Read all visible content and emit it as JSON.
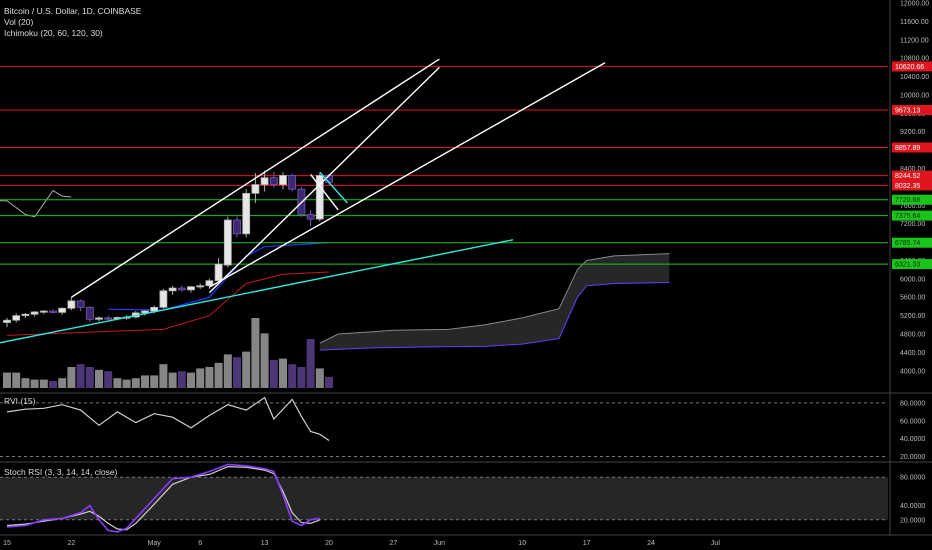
{
  "header": {
    "title": "Bitcoin / U.S. Dollar, 1D, COINBASE",
    "vol_label": "Vol (20)",
    "ichimoku_label": "Ichimoku (20, 60, 120, 30)",
    "rvi_label": "RVI (15)",
    "stoch_label": "Stoch RSI (3, 3, 14, 14, close)"
  },
  "colors": {
    "background": "#000000",
    "bull_candle": "#9e9e9e",
    "bear_candle": "#5a3f8a",
    "resistance_line": "#e0161e",
    "support_line": "#1bc41b",
    "trend_white": "#ffffff",
    "trend_cyan": "#2ee8e0",
    "kijun": "#1a3cff",
    "tenkan": "#c21a1a",
    "cloud_fill": "#2b2b2b",
    "stoch_k": "#8a3cff",
    "stoch_d": "#cfcfcf"
  },
  "chart_data": {
    "type": "candlestick",
    "price_axis": {
      "ylim": [
        3800,
        12000
      ],
      "ticks": [
        4000,
        4400,
        4800,
        5200,
        5600,
        6000,
        6400,
        6800,
        7200,
        7600,
        8000,
        8400,
        8800,
        9200,
        9600,
        10000,
        10400,
        10800,
        11200,
        11600,
        12000
      ],
      "tick_labels": [
        "4000.00",
        "4400.00",
        "4800.00",
        "5200.00",
        "5600.00",
        "6000.00",
        "6400.00",
        "6800.00",
        "7200.00",
        "7600.00",
        "8000.00",
        "8400.00",
        "8800.00",
        "9200.00",
        "9600.00",
        "10000.00",
        "10400.00",
        "10800.00",
        "11200.00",
        "11600.00",
        "12000.00"
      ]
    },
    "x_axis": {
      "labels": [
        "15",
        "22",
        "May",
        "6",
        "13",
        "20",
        "27",
        "Jun",
        "10",
        "17",
        "24",
        "Jul"
      ],
      "label_days": [
        0,
        7,
        16,
        21,
        28,
        35,
        42,
        47,
        56,
        63,
        70,
        77
      ]
    },
    "price_levels": [
      {
        "value": 10620.66,
        "label": "10620.66",
        "type": "resistance"
      },
      {
        "value": 9673.13,
        "label": "9673.13",
        "type": "resistance"
      },
      {
        "value": 8857.89,
        "label": "8857.89",
        "type": "resistance"
      },
      {
        "value": 8244.52,
        "label": "8244.52",
        "type": "resistance"
      },
      {
        "value": 8032.35,
        "label": "8032.35",
        "type": "resistance"
      },
      {
        "value": 7720.68,
        "label": "7720.68",
        "type": "support"
      },
      {
        "value": 7375.64,
        "label": "7375.64",
        "type": "support"
      },
      {
        "value": 6785.74,
        "label": "6785.74",
        "type": "support"
      },
      {
        "value": 6321.33,
        "label": "6321.33",
        "type": "support"
      }
    ],
    "candles": [
      {
        "d": 0,
        "o": 5050,
        "h": 5150,
        "l": 4950,
        "c": 5100
      },
      {
        "d": 1,
        "o": 5100,
        "h": 5250,
        "l": 5050,
        "c": 5200
      },
      {
        "d": 2,
        "o": 5200,
        "h": 5260,
        "l": 5150,
        "c": 5230
      },
      {
        "d": 3,
        "o": 5230,
        "h": 5300,
        "l": 5180,
        "c": 5280
      },
      {
        "d": 4,
        "o": 5280,
        "h": 5320,
        "l": 5230,
        "c": 5300
      },
      {
        "d": 5,
        "o": 5300,
        "h": 5330,
        "l": 5250,
        "c": 5270
      },
      {
        "d": 6,
        "o": 5270,
        "h": 5380,
        "l": 5220,
        "c": 5360
      },
      {
        "d": 7,
        "o": 5360,
        "h": 5600,
        "l": 5320,
        "c": 5520
      },
      {
        "d": 8,
        "o": 5520,
        "h": 5550,
        "l": 5300,
        "c": 5380
      },
      {
        "d": 9,
        "o": 5380,
        "h": 5400,
        "l": 5060,
        "c": 5120
      },
      {
        "d": 10,
        "o": 5120,
        "h": 5180,
        "l": 5070,
        "c": 5150
      },
      {
        "d": 11,
        "o": 5150,
        "h": 5200,
        "l": 5100,
        "c": 5140
      },
      {
        "d": 12,
        "o": 5140,
        "h": 5180,
        "l": 5100,
        "c": 5160
      },
      {
        "d": 13,
        "o": 5160,
        "h": 5210,
        "l": 5110,
        "c": 5170
      },
      {
        "d": 14,
        "o": 5170,
        "h": 5300,
        "l": 5140,
        "c": 5260
      },
      {
        "d": 15,
        "o": 5260,
        "h": 5320,
        "l": 5200,
        "c": 5300
      },
      {
        "d": 16,
        "o": 5300,
        "h": 5420,
        "l": 5250,
        "c": 5380
      },
      {
        "d": 17,
        "o": 5380,
        "h": 5780,
        "l": 5350,
        "c": 5740
      },
      {
        "d": 18,
        "o": 5740,
        "h": 5850,
        "l": 5650,
        "c": 5800
      },
      {
        "d": 19,
        "o": 5800,
        "h": 5860,
        "l": 5720,
        "c": 5760
      },
      {
        "d": 20,
        "o": 5760,
        "h": 5840,
        "l": 5700,
        "c": 5830
      },
      {
        "d": 21,
        "o": 5830,
        "h": 5900,
        "l": 5780,
        "c": 5850
      },
      {
        "d": 22,
        "o": 5850,
        "h": 6000,
        "l": 5780,
        "c": 5960
      },
      {
        "d": 23,
        "o": 5960,
        "h": 6450,
        "l": 5900,
        "c": 6320
      },
      {
        "d": 24,
        "o": 6300,
        "h": 7350,
        "l": 6250,
        "c": 7280
      },
      {
        "d": 25,
        "o": 7280,
        "h": 7350,
        "l": 6900,
        "c": 6980
      },
      {
        "d": 26,
        "o": 6980,
        "h": 7950,
        "l": 6900,
        "c": 7860
      },
      {
        "d": 27,
        "o": 7860,
        "h": 8300,
        "l": 7650,
        "c": 8050
      },
      {
        "d": 28,
        "o": 8050,
        "h": 8350,
        "l": 7900,
        "c": 8200
      },
      {
        "d": 29,
        "o": 8200,
        "h": 8330,
        "l": 7980,
        "c": 8050
      },
      {
        "d": 30,
        "o": 8050,
        "h": 8320,
        "l": 7950,
        "c": 8250
      },
      {
        "d": 31,
        "o": 8250,
        "h": 8290,
        "l": 7900,
        "c": 7950
      },
      {
        "d": 32,
        "o": 7950,
        "h": 8000,
        "l": 7350,
        "c": 7400
      },
      {
        "d": 33,
        "o": 7400,
        "h": 7500,
        "l": 7150,
        "c": 7300
      },
      {
        "d": 34,
        "o": 7300,
        "h": 8300,
        "l": 7250,
        "c": 8250
      },
      {
        "d": 35,
        "o": 8250,
        "h": 8280,
        "l": 8050,
        "c": 8100
      }
    ],
    "volume": {
      "values": [
        22,
        22,
        14,
        12,
        12,
        10,
        14,
        30,
        34,
        30,
        26,
        24,
        14,
        12,
        14,
        18,
        18,
        34,
        22,
        24,
        22,
        28,
        30,
        36,
        48,
        44,
        52,
        100,
        78,
        40,
        42,
        34,
        30,
        70,
        28,
        16
      ],
      "ylim": [
        0,
        140
      ]
    },
    "ichimoku": {
      "kijun": [
        [
          11,
          5340
        ],
        [
          17,
          5320
        ],
        [
          22,
          5600
        ],
        [
          26,
          6500
        ],
        [
          28,
          6700
        ],
        [
          33,
          6760
        ],
        [
          35,
          6790
        ]
      ],
      "tenkan": [
        [
          0,
          4770
        ],
        [
          10,
          4850
        ],
        [
          17,
          4900
        ],
        [
          22,
          5200
        ],
        [
          26,
          5900
        ],
        [
          30,
          6100
        ],
        [
          35,
          6150
        ]
      ],
      "cloud_span_a": [
        [
          34,
          4600
        ],
        [
          36,
          4800
        ],
        [
          42,
          4880
        ],
        [
          48,
          4900
        ],
        [
          52,
          5000
        ],
        [
          56,
          5150
        ],
        [
          60,
          5350
        ],
        [
          62,
          6200
        ],
        [
          63,
          6400
        ],
        [
          66,
          6500
        ],
        [
          72,
          6550
        ]
      ],
      "cloud_span_b": [
        [
          34,
          4450
        ],
        [
          40,
          4500
        ],
        [
          46,
          4520
        ],
        [
          52,
          4530
        ],
        [
          56,
          4580
        ],
        [
          60,
          4700
        ],
        [
          62,
          5600
        ],
        [
          63,
          5850
        ],
        [
          66,
          5900
        ],
        [
          72,
          5920
        ]
      ],
      "lagging": [
        [
          -1,
          7700
        ],
        [
          0,
          7700
        ],
        [
          2,
          7400
        ],
        [
          3,
          7350
        ],
        [
          5,
          7920
        ],
        [
          6,
          7800
        ],
        [
          7,
          7780
        ]
      ]
    },
    "trendlines": [
      {
        "from": [
          7,
          5600
        ],
        "to": [
          47,
          10780
        ],
        "color": "white"
      },
      {
        "from": [
          22,
          5700
        ],
        "to": [
          47,
          10600
        ],
        "color": "white"
      },
      {
        "from": [
          22,
          5820
        ],
        "to": [
          65,
          10700
        ],
        "color": "white"
      },
      {
        "from": [
          -2,
          4560
        ],
        "to": [
          55,
          6850
        ],
        "color": "cyan"
      },
      {
        "from": [
          33,
          8270
        ],
        "to": [
          36,
          7500
        ],
        "color": "white"
      },
      {
        "from": [
          34,
          8320
        ],
        "to": [
          37,
          7650
        ],
        "color": "cyan"
      }
    ],
    "rvi": {
      "label": "RVI (15)",
      "ylim": [
        15,
        90
      ],
      "ticks": [
        20,
        40,
        60,
        80
      ],
      "tick_labels": [
        "20.0000",
        "40.0000",
        "60.0000",
        "80.0000"
      ],
      "bands": [
        80,
        20
      ],
      "values": [
        [
          0,
          70
        ],
        [
          2,
          73
        ],
        [
          4,
          74
        ],
        [
          6,
          78
        ],
        [
          8,
          72
        ],
        [
          10,
          55
        ],
        [
          12,
          70
        ],
        [
          14,
          58
        ],
        [
          16,
          68
        ],
        [
          18,
          64
        ],
        [
          20,
          52
        ],
        [
          22,
          66
        ],
        [
          24,
          78
        ],
        [
          26,
          72
        ],
        [
          28,
          86
        ],
        [
          29,
          62
        ],
        [
          31,
          84
        ],
        [
          32,
          65
        ],
        [
          33,
          48
        ],
        [
          34,
          45
        ],
        [
          35,
          38
        ]
      ]
    },
    "stoch_rsi": {
      "label": "Stoch RSI (3, 3, 14, 14, close)",
      "ylim": [
        0,
        100
      ],
      "ticks": [
        20,
        40,
        80
      ],
      "tick_labels": [
        "20.0000",
        "40.0000",
        "80.0000"
      ],
      "band": [
        20,
        80
      ],
      "k": [
        [
          0,
          10
        ],
        [
          2,
          12
        ],
        [
          4,
          20
        ],
        [
          6,
          22
        ],
        [
          8,
          30
        ],
        [
          9,
          40
        ],
        [
          10,
          20
        ],
        [
          11,
          5
        ],
        [
          12,
          3
        ],
        [
          13,
          8
        ],
        [
          14,
          22
        ],
        [
          16,
          50
        ],
        [
          18,
          78
        ],
        [
          20,
          80
        ],
        [
          22,
          88
        ],
        [
          24,
          98
        ],
        [
          26,
          96
        ],
        [
          28,
          92
        ],
        [
          29,
          88
        ],
        [
          30,
          55
        ],
        [
          31,
          18
        ],
        [
          32,
          12
        ],
        [
          33,
          20
        ],
        [
          34,
          22
        ]
      ],
      "d": [
        [
          0,
          12
        ],
        [
          2,
          14
        ],
        [
          4,
          18
        ],
        [
          6,
          22
        ],
        [
          8,
          28
        ],
        [
          9,
          32
        ],
        [
          10,
          25
        ],
        [
          11,
          15
        ],
        [
          12,
          7
        ],
        [
          13,
          6
        ],
        [
          14,
          15
        ],
        [
          16,
          42
        ],
        [
          18,
          70
        ],
        [
          20,
          80
        ],
        [
          22,
          84
        ],
        [
          24,
          95
        ],
        [
          26,
          94
        ],
        [
          28,
          90
        ],
        [
          29,
          85
        ],
        [
          30,
          60
        ],
        [
          31,
          30
        ],
        [
          32,
          16
        ],
        [
          33,
          15
        ],
        [
          34,
          20
        ]
      ]
    }
  }
}
